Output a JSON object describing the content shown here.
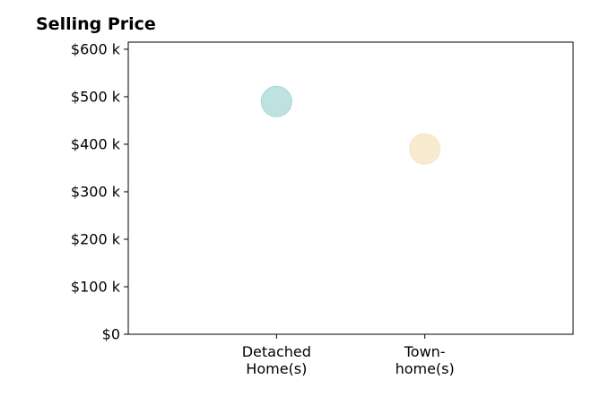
{
  "chart_data": {
    "type": "scatter",
    "title": "Selling Price",
    "categories": [
      "Detached\nHome(s)",
      "Town-\nhome(s)"
    ],
    "values": [
      490000,
      390000
    ],
    "colors": [
      "#a8d8d4",
      "#f6e4c0"
    ],
    "ylim": [
      0,
      615000
    ],
    "yticks": [
      0,
      100000,
      200000,
      300000,
      400000,
      500000,
      600000
    ],
    "ytick_labels": [
      "$0",
      "$100 k",
      "$200 k",
      "$300 k",
      "$400 k",
      "$500 k",
      "$600 k"
    ],
    "grid": false,
    "legend": "none"
  }
}
